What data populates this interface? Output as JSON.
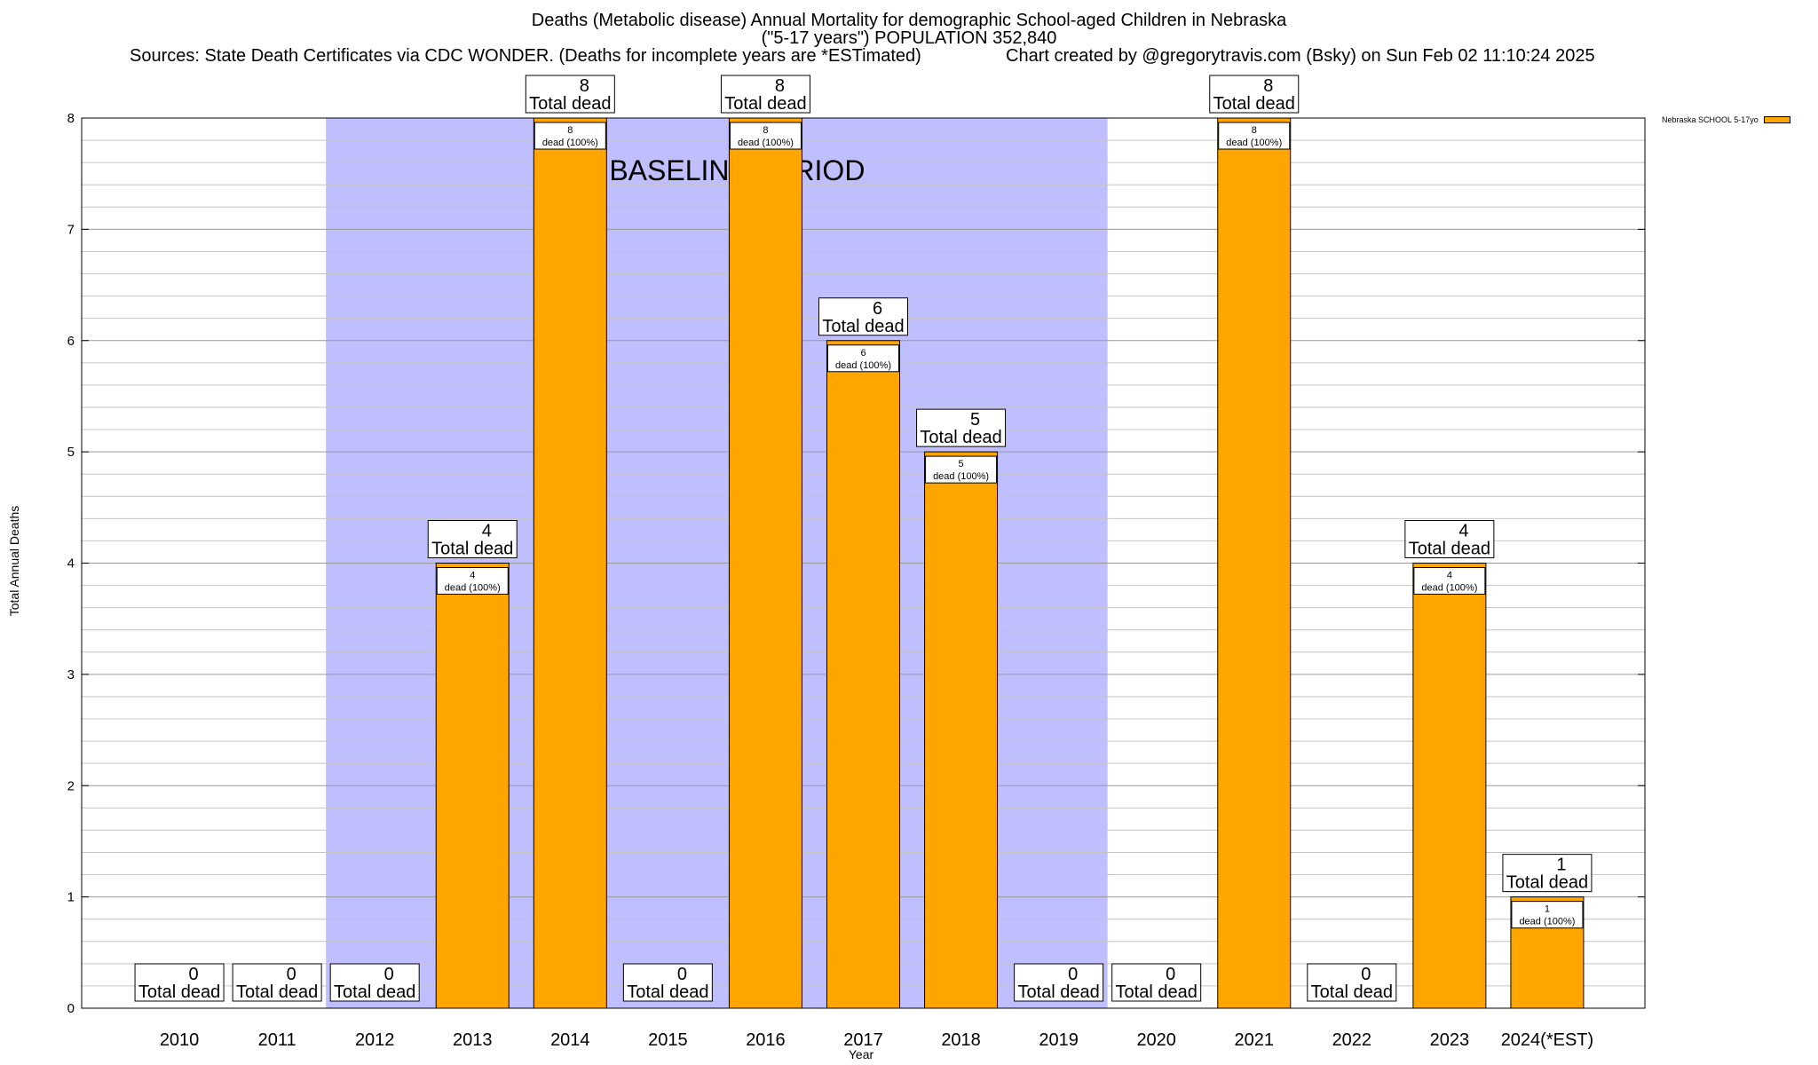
{
  "title": {
    "line1": "Deaths (Metabolic disease) Annual Mortality for demographic School-aged Children in Nebraska",
    "line2": "(\"5-17 years\") POPULATION 352,840",
    "sources": "Sources: State Death Certificates via CDC WONDER. (Deaths for incomplete years are *ESTimated)",
    "credit": "Chart created by @gregorytravis.com (Bsky) on Sun Feb 02 11:10:24 2025"
  },
  "chart_data": {
    "type": "bar",
    "categories": [
      "2010",
      "2011",
      "2012",
      "2013",
      "2014",
      "2015",
      "2016",
      "2017",
      "2018",
      "2019",
      "2020",
      "2021",
      "2022",
      "2023",
      "2024(*EST)"
    ],
    "series": [
      {
        "name": "Nebraska SCHOOL 5-17yo",
        "values": [
          0,
          0,
          0,
          4,
          8,
          0,
          8,
          6,
          5,
          0,
          0,
          8,
          0,
          4,
          1
        ],
        "color": "#FFA500"
      }
    ],
    "total_label": "Total dead",
    "bar_label_suffix": "dead (100%)",
    "xlabel": "Year",
    "ylabel": "Total Annual Deaths",
    "ylim": [
      0,
      8
    ],
    "yticks": [
      0,
      1,
      2,
      3,
      4,
      5,
      6,
      7,
      8
    ],
    "grid": true,
    "legend_position": "top-right",
    "baseline": {
      "label": "BASELINE PERIOD",
      "start": "2012",
      "end": "2019",
      "color": "#BFBFFF"
    }
  }
}
